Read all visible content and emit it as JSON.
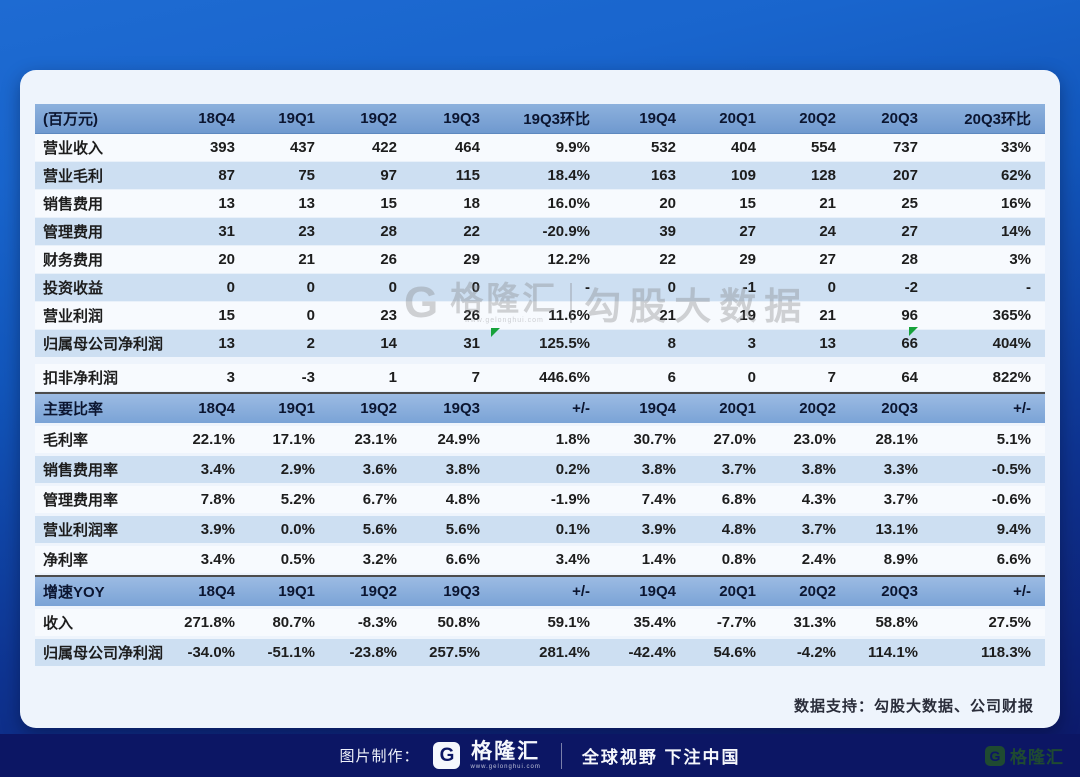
{
  "colors": {
    "background_top": "#1e6bd2",
    "background_bottom": "#0d1766",
    "card_background": "#eef4fc",
    "table_header_blue": "#7ba3d8",
    "stripe_blue": "#cddff2",
    "stripe_white": "#f7fafe",
    "bottom_bar_navy": "#0c1664",
    "watermark_green": "#17a23b",
    "corner_logo_green": "#1f4a31"
  },
  "chart_data": [
    {
      "type": "table",
      "columns": [
        "(百万元)",
        "18Q4",
        "19Q1",
        "19Q2",
        "19Q3",
        "19Q3环比",
        "19Q4",
        "20Q1",
        "20Q2",
        "20Q3",
        "20Q3环比"
      ],
      "rows": [
        [
          "营业收入",
          "393",
          "437",
          "422",
          "464",
          "9.9%",
          "532",
          "404",
          "554",
          "737",
          "33%"
        ],
        [
          "营业毛利",
          "87",
          "75",
          "97",
          "115",
          "18.4%",
          "163",
          "109",
          "128",
          "207",
          "62%"
        ],
        [
          "销售费用",
          "13",
          "13",
          "15",
          "18",
          "16.0%",
          "20",
          "15",
          "21",
          "25",
          "16%"
        ],
        [
          "管理费用",
          "31",
          "23",
          "28",
          "22",
          "-20.9%",
          "39",
          "27",
          "24",
          "27",
          "14%"
        ],
        [
          "财务费用",
          "20",
          "21",
          "26",
          "29",
          "12.2%",
          "22",
          "29",
          "27",
          "28",
          "3%"
        ],
        [
          "投资收益",
          "0",
          "0",
          "0",
          "0",
          "-",
          "0",
          "-1",
          "0",
          "-2",
          "-"
        ],
        [
          "营业利润",
          "15",
          "0",
          "23",
          "26",
          "11.6%",
          "21",
          "19",
          "21",
          "96",
          "365%"
        ],
        [
          "归属母公司净利润",
          "13",
          "2",
          "14",
          "31",
          "125.5%",
          "8",
          "3",
          "13",
          "66",
          "404%"
        ],
        [
          "扣非净利润",
          "3",
          "-3",
          "1",
          "7",
          "446.6%",
          "6",
          "0",
          "7",
          "64",
          "822%"
        ]
      ]
    },
    {
      "type": "table",
      "columns": [
        "主要比率",
        "18Q4",
        "19Q1",
        "19Q2",
        "19Q3",
        "+/-",
        "19Q4",
        "20Q1",
        "20Q2",
        "20Q3",
        "+/-"
      ],
      "rows": [
        [
          "毛利率",
          "22.1%",
          "17.1%",
          "23.1%",
          "24.9%",
          "1.8%",
          "30.7%",
          "27.0%",
          "23.0%",
          "28.1%",
          "5.1%"
        ],
        [
          "销售费用率",
          "3.4%",
          "2.9%",
          "3.6%",
          "3.8%",
          "0.2%",
          "3.8%",
          "3.7%",
          "3.8%",
          "3.3%",
          "-0.5%"
        ],
        [
          "管理费用率",
          "7.8%",
          "5.2%",
          "6.7%",
          "4.8%",
          "-1.9%",
          "7.4%",
          "6.8%",
          "4.3%",
          "3.7%",
          "-0.6%"
        ],
        [
          "营业利润率",
          "3.9%",
          "0.0%",
          "5.6%",
          "5.6%",
          "0.1%",
          "3.9%",
          "4.8%",
          "3.7%",
          "13.1%",
          "9.4%"
        ],
        [
          "净利率",
          "3.4%",
          "0.5%",
          "3.2%",
          "6.6%",
          "3.4%",
          "1.4%",
          "0.8%",
          "2.4%",
          "8.9%",
          "6.6%"
        ]
      ]
    },
    {
      "type": "table",
      "columns": [
        "增速YOY",
        "18Q4",
        "19Q1",
        "19Q2",
        "19Q3",
        "+/-",
        "19Q4",
        "20Q1",
        "20Q2",
        "20Q3",
        "+/-"
      ],
      "rows": [
        [
          "收入",
          "271.8%",
          "80.7%",
          "-8.3%",
          "50.8%",
          "59.1%",
          "35.4%",
          "-7.7%",
          "31.3%",
          "58.8%",
          "27.5%"
        ],
        [
          "归属母公司净利润",
          "-34.0%",
          "-51.1%",
          "-23.8%",
          "257.5%",
          "281.4%",
          "-42.4%",
          "54.6%",
          "-4.2%",
          "114.1%",
          "118.3%"
        ]
      ]
    }
  ],
  "watermark": {
    "logo": "G",
    "brand": "格隆汇",
    "url": "www.gelonghui.com",
    "text": "勾股大数据"
  },
  "footer_note": "数据支持：勾股大数据、公司财报",
  "bottom_bar": {
    "label": "图片制作：",
    "logo": "G",
    "brand": "格隆汇",
    "url": "www.gelonghui.com",
    "slogan": "全球视野 下注中国"
  },
  "corner_logo": {
    "logo": "G",
    "brand": "格隆汇"
  }
}
